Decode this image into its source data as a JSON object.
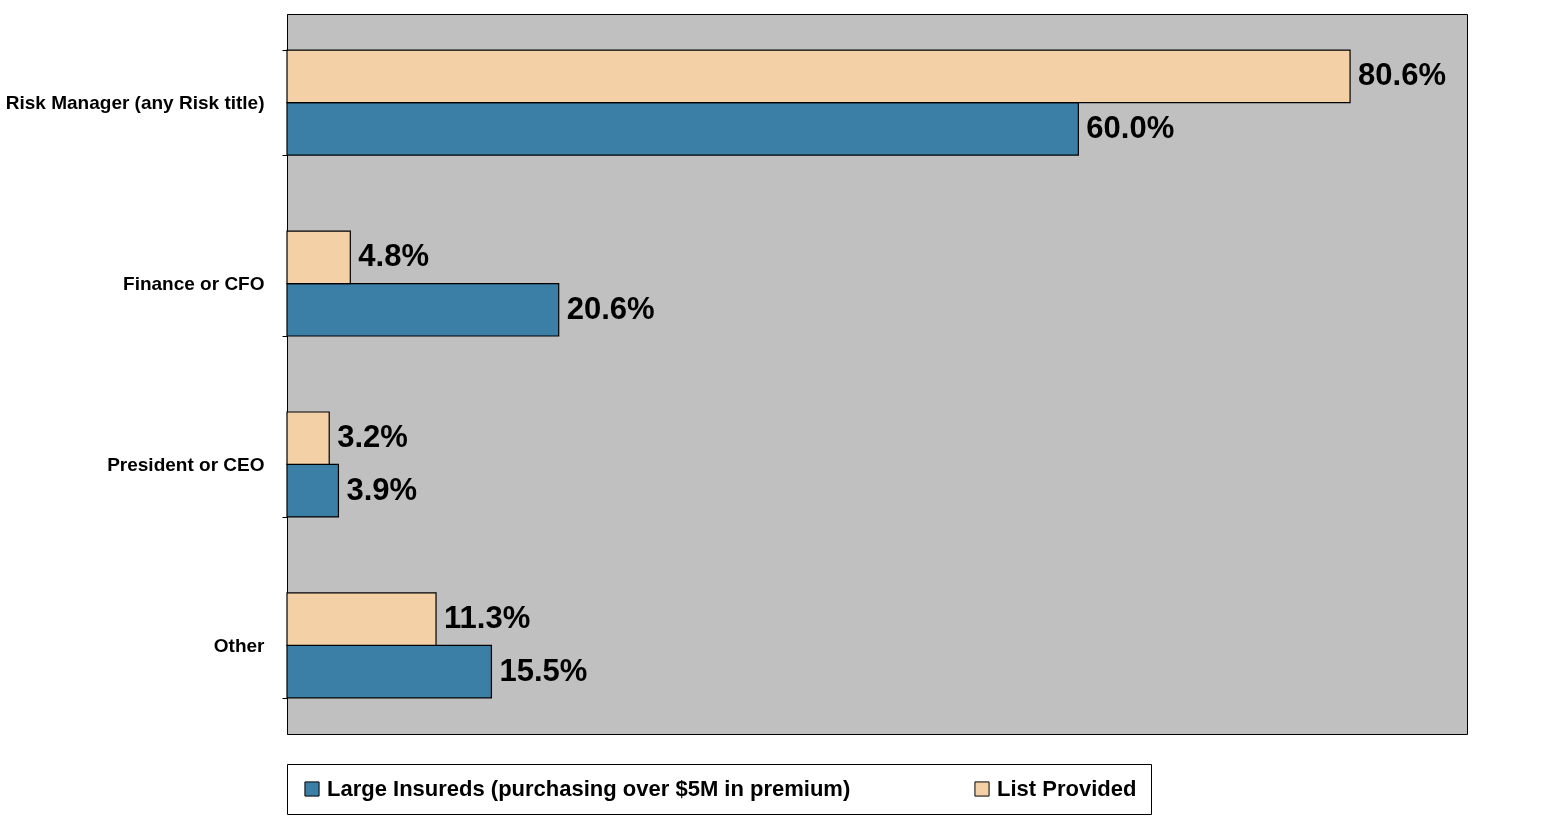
{
  "chart_data": {
    "type": "bar",
    "orientation": "horizontal",
    "categories": [
      "Risk Manager (any Risk title)",
      "Finance or CFO",
      "President or CEO",
      "Other"
    ],
    "series": [
      {
        "name": "Large Insureds (purchasing over $5M in premium)",
        "color": "#3b7ea6",
        "values": [
          60.0,
          20.6,
          3.9,
          15.5
        ],
        "value_labels": [
          "60.0%",
          "20.6%",
          "3.9%",
          "15.5%"
        ]
      },
      {
        "name": "List Provided",
        "color": "#f3d0a6",
        "values": [
          80.6,
          4.8,
          3.2,
          11.3
        ],
        "value_labels": [
          "80.6%",
          "4.8%",
          "3.2%",
          "11.3%"
        ]
      }
    ],
    "legend": "bottom",
    "grid": false
  }
}
